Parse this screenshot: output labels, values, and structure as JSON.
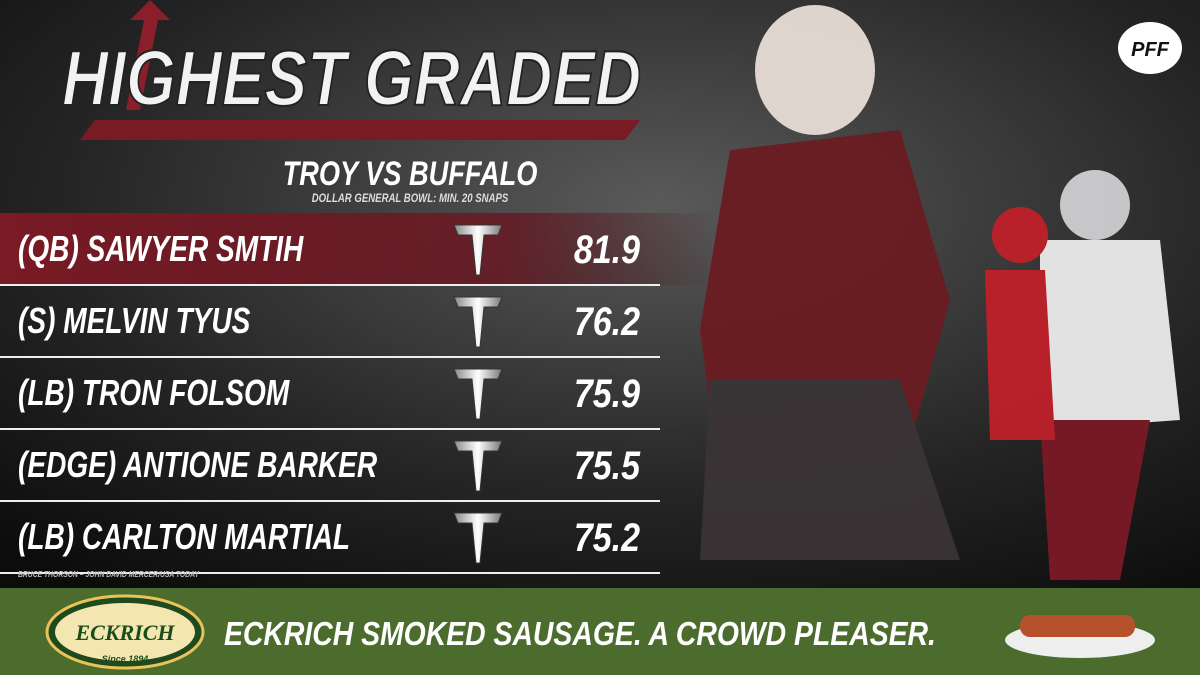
{
  "header": {
    "title": "HIGHEST GRADED",
    "subtitle": "TROY VS BUFFALO",
    "note": "DOLLAR GENERAL BOWL: MIN. 20 SNAPS",
    "logo": "PFF"
  },
  "table": {
    "rows": [
      [
        "(QB) SAWYER SMTIH",
        "81.9"
      ],
      [
        "(S) MELVIN TYUS",
        "76.2"
      ],
      [
        "(LB) TRON FOLSOM",
        "75.9"
      ],
      [
        "(EDGE) ANTIONE BARKER",
        "75.5"
      ],
      [
        "(LB) CARLTON MARTIAL",
        "75.2"
      ]
    ]
  },
  "credit": "BRUCE THORSON – JOHN DAVID MERCER/USA TODAY",
  "ad": {
    "brand": "ECKRICH",
    "since": "Since 1894",
    "text": "ECKRICH SMOKED SAUSAGE. A CROWD PLEASER."
  }
}
